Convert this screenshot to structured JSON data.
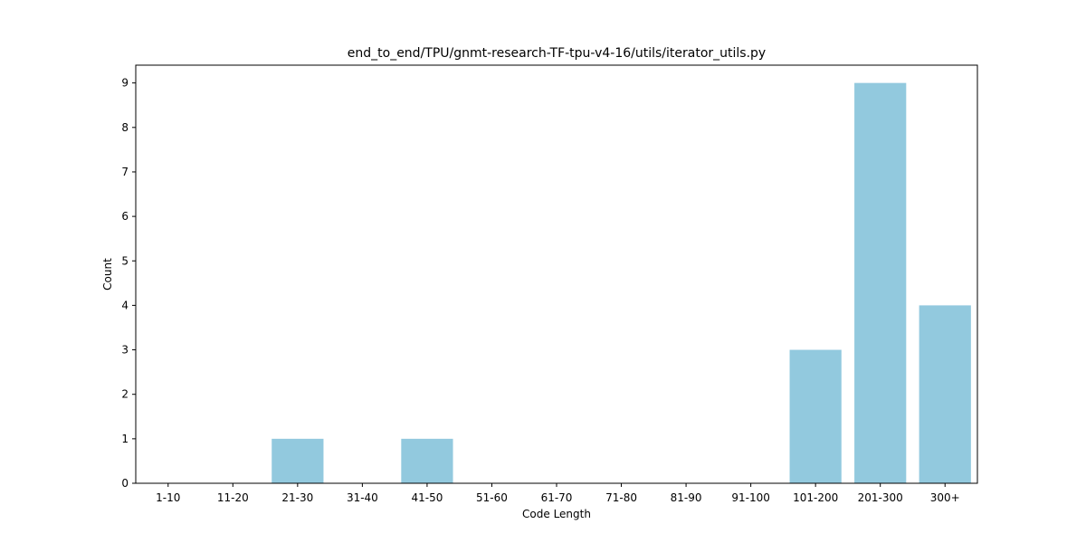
{
  "chart_data": {
    "type": "bar",
    "title": "end_to_end/TPU/gnmt-research-TF-tpu-v4-16/utils/iterator_utils.py",
    "xlabel": "Code Length",
    "ylabel": "Count",
    "categories": [
      "1-10",
      "11-20",
      "21-30",
      "31-40",
      "41-50",
      "51-60",
      "61-70",
      "71-80",
      "81-90",
      "91-100",
      "101-200",
      "201-300",
      "300+"
    ],
    "values": [
      0,
      0,
      1,
      0,
      1,
      0,
      0,
      0,
      0,
      0,
      3,
      9,
      4
    ],
    "ylim": [
      0,
      9.4
    ],
    "yticks": [
      0,
      1,
      2,
      3,
      4,
      5,
      6,
      7,
      8,
      9
    ],
    "grid": false,
    "legend": "none",
    "colors": {
      "bar": "#92c9de",
      "axis": "#000000",
      "background": "#ffffff"
    }
  }
}
